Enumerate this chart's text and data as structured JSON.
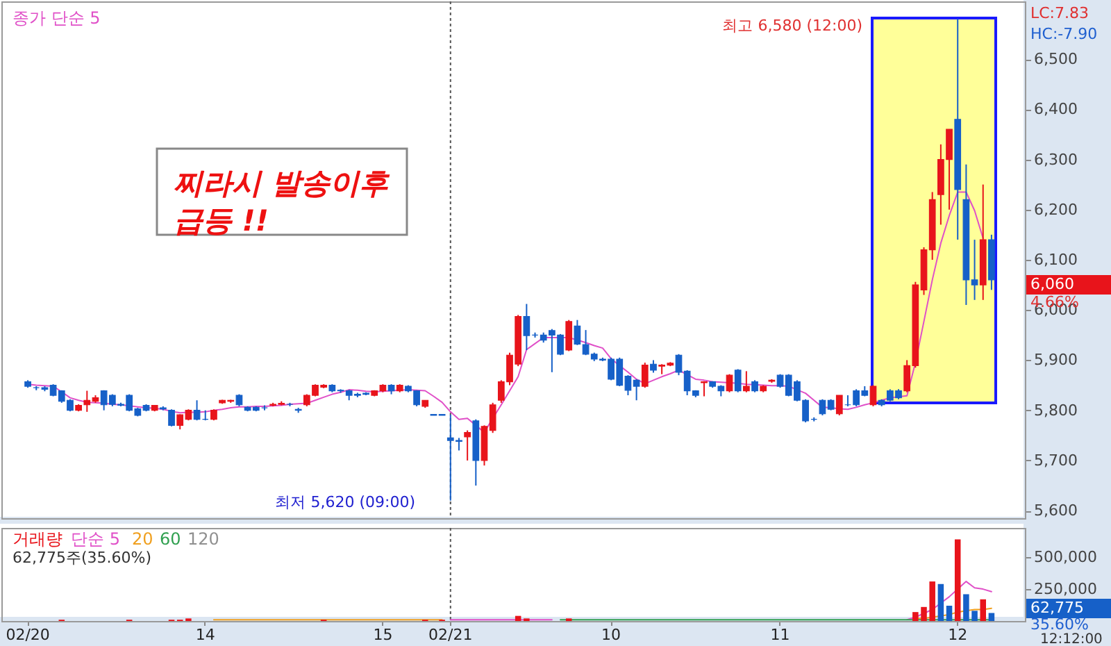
{
  "chart_data": [
    {
      "type": "candlestick",
      "ylim": [
        5585,
        6615
      ],
      "yticks": [
        {
          "value": 5600,
          "label": "5,600"
        },
        {
          "value": 5700,
          "label": "5,700"
        },
        {
          "value": 5800,
          "label": "5,800"
        },
        {
          "value": 5900,
          "label": "5,900"
        },
        {
          "value": 6000,
          "label": "6,000"
        },
        {
          "value": 6100,
          "label": "6,100"
        },
        {
          "value": 6200,
          "label": "6,200"
        },
        {
          "value": 6300,
          "label": "6,300"
        },
        {
          "value": 6400,
          "label": "6,400"
        },
        {
          "value": 6500,
          "label": "6,500"
        }
      ],
      "tick_labels": "y",
      "legend": "top left",
      "categories": [
        "02/20",
        null,
        null,
        null,
        null,
        null,
        null,
        null,
        null,
        null,
        null,
        null,
        null,
        null,
        null,
        null,
        null,
        null,
        null,
        null,
        null,
        "14",
        null,
        null,
        null,
        null,
        null,
        null,
        null,
        null,
        null,
        null,
        null,
        null,
        null,
        null,
        null,
        null,
        null,
        null,
        null,
        null,
        "15",
        null,
        null,
        null,
        null,
        null,
        null,
        null,
        "02/21",
        null,
        null,
        null,
        null,
        null,
        null,
        null,
        null,
        null,
        null,
        null,
        null,
        null,
        null,
        null,
        null,
        null,
        null,
        "10",
        null,
        null,
        null,
        null,
        null,
        null,
        null,
        null,
        null,
        null,
        null,
        null,
        null,
        null,
        null,
        null,
        null,
        null,
        null,
        "11",
        null,
        null,
        null,
        null,
        null,
        null,
        null,
        null,
        null,
        null,
        null,
        null,
        null,
        null,
        null,
        null,
        null,
        null,
        null,
        null,
        "12",
        null,
        null,
        null,
        null
      ],
      "ohlc": [
        [
          5857,
          5860,
          5845,
          5848
        ],
        [
          5845,
          5848,
          5840,
          5845
        ],
        [
          5845,
          5848,
          5838,
          5842
        ],
        [
          5850,
          5852,
          5828,
          5830
        ],
        [
          5839,
          5840,
          5815,
          5818
        ],
        [
          5820,
          5822,
          5798,
          5800
        ],
        [
          5800,
          5812,
          5798,
          5810
        ],
        [
          5811,
          5839,
          5797,
          5820
        ],
        [
          5818,
          5830,
          5815,
          5825
        ],
        [
          5839,
          5840,
          5800,
          5811
        ],
        [
          5830,
          5832,
          5808,
          5812
        ],
        [
          5812,
          5815,
          5808,
          5810
        ],
        [
          5830,
          5832,
          5798,
          5800
        ],
        [
          5803,
          5805,
          5788,
          5790
        ],
        [
          5810,
          5812,
          5798,
          5800
        ],
        [
          5800,
          5810,
          5798,
          5810
        ],
        [
          5805,
          5808,
          5800,
          5803
        ],
        [
          5800,
          5802,
          5768,
          5770
        ],
        [
          5770,
          5792,
          5762,
          5791
        ],
        [
          5782,
          5802,
          5780,
          5800
        ],
        [
          5800,
          5820,
          5780,
          5782
        ],
        [
          5782,
          5800,
          5780,
          5782
        ],
        [
          5782,
          5802,
          5780,
          5800
        ],
        [
          5815,
          5821,
          5813,
          5820
        ],
        [
          5818,
          5821,
          5815,
          5820
        ],
        [
          5830,
          5832,
          5808,
          5811
        ],
        [
          5806,
          5808,
          5798,
          5800
        ],
        [
          5806,
          5808,
          5798,
          5800
        ],
        [
          5805,
          5810,
          5800,
          5805
        ],
        [
          5810,
          5815,
          5808,
          5812
        ],
        [
          5812,
          5818,
          5810,
          5814
        ],
        [
          5812,
          5815,
          5808,
          5812
        ],
        [
          5802,
          5805,
          5795,
          5800
        ],
        [
          5811,
          5832,
          5808,
          5830
        ],
        [
          5830,
          5852,
          5828,
          5850
        ],
        [
          5846,
          5852,
          5844,
          5850
        ],
        [
          5850,
          5852,
          5836,
          5839
        ],
        [
          5840,
          5842,
          5835,
          5839
        ],
        [
          5839,
          5841,
          5820,
          5830
        ],
        [
          5832,
          5835,
          5826,
          5830
        ],
        [
          5834,
          5836,
          5830,
          5832
        ],
        [
          5830,
          5840,
          5828,
          5839
        ],
        [
          5839,
          5852,
          5836,
          5850
        ],
        [
          5850,
          5852,
          5832,
          5839
        ],
        [
          5839,
          5852,
          5836,
          5850
        ],
        [
          5848,
          5850,
          5836,
          5839
        ],
        [
          5839,
          5840,
          5808,
          5811
        ],
        [
          5808,
          5820,
          5805,
          5820
        ],
        [
          5792,
          5792,
          5790,
          5790
        ],
        [
          5792,
          5792,
          5790,
          5790
        ],
        [
          5745,
          5791,
          5620,
          5740
        ],
        [
          5740,
          5745,
          5720,
          5738
        ],
        [
          5747,
          5760,
          5700,
          5756
        ],
        [
          5779,
          5782,
          5650,
          5700
        ],
        [
          5700,
          5770,
          5690,
          5768
        ],
        [
          5760,
          5815,
          5755,
          5811
        ],
        [
          5820,
          5860,
          5815,
          5857
        ],
        [
          5857,
          5915,
          5850,
          5910
        ],
        [
          5892,
          5990,
          5888,
          5987
        ],
        [
          5987,
          6012,
          5920,
          5949
        ],
        [
          5950,
          5955,
          5945,
          5950
        ],
        [
          5950,
          5955,
          5935,
          5940
        ],
        [
          5959,
          5962,
          5876,
          5950
        ],
        [
          5950,
          5952,
          5910,
          5912
        ],
        [
          5920,
          5980,
          5918,
          5977
        ],
        [
          5968,
          5980,
          5930,
          5932
        ],
        [
          5931,
          5960,
          5910,
          5912
        ],
        [
          5912,
          5915,
          5898,
          5902
        ],
        [
          5900,
          5905,
          5898,
          5902
        ],
        [
          5902,
          5905,
          5860,
          5862
        ],
        [
          5902,
          5905,
          5848,
          5850
        ],
        [
          5868,
          5870,
          5830,
          5840
        ],
        [
          5860,
          5862,
          5820,
          5848
        ],
        [
          5848,
          5895,
          5845,
          5890
        ],
        [
          5892,
          5900,
          5875,
          5880
        ],
        [
          5888,
          5892,
          5872,
          5890
        ],
        [
          5890,
          5896,
          5888,
          5894
        ],
        [
          5910,
          5912,
          5870,
          5876
        ],
        [
          5878,
          5880,
          5830,
          5839
        ],
        [
          5839,
          5840,
          5826,
          5830
        ],
        [
          5855,
          5858,
          5828,
          5857
        ],
        [
          5857,
          5858,
          5845,
          5848
        ],
        [
          5848,
          5850,
          5828,
          5839
        ],
        [
          5839,
          5872,
          5836,
          5870
        ],
        [
          5880,
          5882,
          5836,
          5839
        ],
        [
          5839,
          5878,
          5836,
          5848
        ],
        [
          5857,
          5860,
          5836,
          5839
        ],
        [
          5839,
          5850,
          5836,
          5848
        ],
        [
          5858,
          5862,
          5855,
          5860
        ],
        [
          5870,
          5872,
          5845,
          5848
        ],
        [
          5870,
          5872,
          5828,
          5830
        ],
        [
          5857,
          5860,
          5818,
          5820
        ],
        [
          5820,
          5822,
          5776,
          5779
        ],
        [
          5782,
          5786,
          5778,
          5782
        ],
        [
          5820,
          5822,
          5790,
          5793
        ],
        [
          5820,
          5822,
          5800,
          5802
        ],
        [
          5793,
          5830,
          5790,
          5830
        ],
        [
          5811,
          5830,
          5808,
          5811
        ],
        [
          5839,
          5842,
          5808,
          5811
        ],
        [
          5839,
          5848,
          5828,
          5830
        ],
        [
          5811,
          5850,
          5808,
          5848
        ],
        [
          5820,
          5822,
          5808,
          5811
        ],
        [
          5839,
          5842,
          5818,
          5820
        ],
        [
          5839,
          5842,
          5822,
          5825
        ],
        [
          5839,
          5900,
          5836,
          5889
        ],
        [
          5889,
          6056,
          5885,
          6050
        ],
        [
          6040,
          6125,
          6030,
          6120
        ],
        [
          6120,
          6235,
          6100,
          6220
        ],
        [
          6230,
          6330,
          6170,
          6300
        ],
        [
          6300,
          6360,
          6200,
          6360
        ],
        [
          6380,
          6580,
          6140,
          6240
        ],
        [
          6220,
          6290,
          6010,
          6060
        ],
        [
          6060,
          6140,
          6020,
          6050
        ],
        [
          6050,
          6250,
          6020,
          6140
        ],
        [
          6140,
          6150,
          6040,
          6060
        ]
      ],
      "colors": [
        "#1660c8",
        "#1660c8",
        "#1660c8",
        "#1660c8",
        "#1660c8",
        "#1660c8",
        "#e8141b",
        "#e8141b",
        "#e8141b",
        "#1660c8",
        "#1660c8",
        "#1660c8",
        "#1660c8",
        "#1660c8",
        "#1660c8",
        "#e8141b",
        "#1660c8",
        "#1660c8",
        "#e8141b",
        "#e8141b",
        "#1660c8",
        "#1660c8",
        "#e8141b",
        "#e8141b",
        "#e8141b",
        "#1660c8",
        "#1660c8",
        "#1660c8",
        "#1660c8",
        "#e8141b",
        "#e8141b",
        "#1660c8",
        "#1660c8",
        "#e8141b",
        "#e8141b",
        "#e8141b",
        "#1660c8",
        "#1660c8",
        "#1660c8",
        "#1660c8",
        "#1660c8",
        "#e8141b",
        "#e8141b",
        "#1660c8",
        "#e8141b",
        "#1660c8",
        "#1660c8",
        "#e8141b",
        "#1660c8",
        "#1660c8",
        "#1660c8",
        "#1660c8",
        "#e8141b",
        "#1660c8",
        "#e8141b",
        "#e8141b",
        "#e8141b",
        "#e8141b",
        "#e8141b",
        "#1660c8",
        "#1660c8",
        "#1660c8",
        "#1660c8",
        "#1660c8",
        "#e8141b",
        "#1660c8",
        "#1660c8",
        "#1660c8",
        "#1660c8",
        "#1660c8",
        "#1660c8",
        "#1660c8",
        "#1660c8",
        "#e8141b",
        "#1660c8",
        "#e8141b",
        "#e8141b",
        "#1660c8",
        "#1660c8",
        "#1660c8",
        "#e8141b",
        "#1660c8",
        "#1660c8",
        "#e8141b",
        "#1660c8",
        "#e8141b",
        "#1660c8",
        "#e8141b",
        "#e8141b",
        "#1660c8",
        "#1660c8",
        "#1660c8",
        "#1660c8",
        "#1660c8",
        "#1660c8",
        "#1660c8",
        "#e8141b",
        "#1660c8",
        "#1660c8",
        "#1660c8",
        "#e8141b",
        "#1660c8",
        "#1660c8",
        "#1660c8",
        "#e8141b",
        "#e8141b",
        "#e8141b",
        "#e8141b",
        "#e8141b",
        "#e8141b",
        "#1660c8",
        "#1660c8",
        "#1660c8",
        "#e8141b",
        "#1660c8"
      ],
      "series": [
        {
          "name": "종가 단순 5",
          "type": "line",
          "color": "#e050c8",
          "values": [
            5852,
            5850,
            5849,
            5848,
            5837,
            5825,
            5820,
            5816,
            5815,
            5814,
            5812,
            5811,
            5809,
            5807,
            5805,
            5804,
            5802,
            5798,
            5795,
            5796,
            5796,
            5797,
            5800,
            5802,
            5805,
            5807,
            5807,
            5808,
            5808,
            5809,
            5810,
            5812,
            5813,
            5814,
            5820,
            5826,
            5832,
            5836,
            5841,
            5840,
            5838,
            5837,
            5838,
            5839,
            5840,
            5841,
            5840,
            5839,
            5828,
            5816,
            5797,
            5782,
            5784,
            5770,
            5756,
            5784,
            5811,
            5839,
            5867,
            5921,
            5933,
            5945,
            5945,
            5945,
            5945,
            5940,
            5935,
            5929,
            5924,
            5903,
            5889,
            5876,
            5862,
            5853,
            5860,
            5867,
            5873,
            5880,
            5871,
            5862,
            5860,
            5857,
            5856,
            5855,
            5854,
            5852,
            5851,
            5850,
            5849,
            5849,
            5848,
            5841,
            5834,
            5820,
            5806,
            5805,
            5803,
            5802,
            5806,
            5811,
            5815,
            5820,
            5825,
            5827,
            5829,
            5895,
            5977,
            6060,
            6133,
            6188,
            6235,
            6235,
            6198,
            6143,
            null
          ]
        }
      ],
      "ref_lines": [
        {
          "axis": "x",
          "value": "02/21",
          "line_style": "dotted",
          "color": "#555555"
        }
      ],
      "annotations": [
        "최고 6,580 (12:00)",
        "최저 5,620 (09:00)",
        "찌라시 발송이후\n급등 !!",
        "LC:7.83",
        "HC:-7.90",
        "6,060",
        "4.66%"
      ]
    },
    {
      "type": "bar",
      "ylim": [
        0,
        730000
      ],
      "yticks": [
        {
          "value": 250000,
          "label": "250,000"
        },
        {
          "value": 500000,
          "label": "500,000"
        }
      ],
      "categories": [
        "02/20",
        null,
        null,
        null,
        null,
        null,
        null,
        null,
        null,
        null,
        null,
        null,
        null,
        null,
        null,
        null,
        null,
        null,
        null,
        null,
        null,
        "14",
        null,
        null,
        null,
        null,
        null,
        null,
        null,
        null,
        null,
        null,
        null,
        null,
        null,
        null,
        null,
        null,
        null,
        null,
        null,
        null,
        "15",
        null,
        null,
        null,
        null,
        null,
        null,
        null,
        "02/21",
        null,
        null,
        null,
        null,
        null,
        null,
        null,
        null,
        null,
        null,
        null,
        null,
        null,
        null,
        null,
        null,
        null,
        null,
        "10",
        null,
        null,
        null,
        null,
        null,
        null,
        null,
        null,
        null,
        null,
        null,
        null,
        null,
        null,
        null,
        null,
        null,
        null,
        null,
        "11",
        null,
        null,
        null,
        null,
        null,
        null,
        null,
        null,
        null,
        null,
        null,
        null,
        null,
        null,
        null,
        null,
        null,
        null,
        null,
        null,
        "12",
        null,
        null,
        null,
        null
      ],
      "legend": "top left",
      "series": [
        {
          "name": "거래량",
          "type": "bar",
          "values": [
            null,
            null,
            null,
            null,
            10000,
            null,
            null,
            null,
            null,
            null,
            null,
            null,
            10000,
            null,
            null,
            null,
            null,
            10000,
            10000,
            20000,
            null,
            null,
            null,
            null,
            null,
            null,
            null,
            null,
            null,
            null,
            null,
            null,
            null,
            null,
            null,
            10000,
            null,
            null,
            null,
            null,
            null,
            null,
            null,
            null,
            null,
            null,
            null,
            10000,
            null,
            10000,
            null,
            null,
            null,
            null,
            null,
            null,
            null,
            null,
            40000,
            20000,
            null,
            null,
            null,
            null,
            20000,
            null,
            null,
            null,
            null,
            null,
            null,
            null,
            null,
            null,
            null,
            null,
            null,
            null,
            null,
            null,
            null,
            null,
            null,
            null,
            null,
            null,
            null,
            null,
            null,
            null,
            null,
            null,
            null,
            null,
            null,
            null,
            null,
            null,
            null,
            null,
            null,
            null,
            null,
            null,
            null,
            70000,
            110000,
            310000,
            290000,
            120000,
            640000,
            210000,
            80000,
            170000,
            62775
          ],
          "colors": [
            null,
            null,
            null,
            null,
            "#e8141b",
            null,
            null,
            null,
            null,
            null,
            null,
            null,
            "#e8141b",
            null,
            null,
            null,
            null,
            "#e8141b",
            "#e8141b",
            "#e8141b",
            null,
            null,
            null,
            null,
            null,
            null,
            null,
            null,
            null,
            null,
            null,
            null,
            null,
            null,
            null,
            "#e8141b",
            null,
            null,
            null,
            null,
            null,
            null,
            null,
            null,
            null,
            null,
            null,
            "#e8141b",
            null,
            "#e8141b",
            null,
            null,
            null,
            null,
            null,
            null,
            null,
            null,
            "#e8141b",
            "#e8141b",
            null,
            null,
            null,
            null,
            "#e8141b",
            null,
            null,
            null,
            null,
            null,
            null,
            null,
            null,
            null,
            null,
            null,
            null,
            null,
            null,
            null,
            null,
            null,
            null,
            null,
            null,
            null,
            null,
            null,
            null,
            null,
            null,
            null,
            null,
            null,
            null,
            null,
            null,
            null,
            null,
            null,
            null,
            null,
            null,
            null,
            null,
            "#e8141b",
            "#e8141b",
            "#e8141b",
            "#1660c8",
            "#1660c8",
            "#e8141b",
            "#1660c8",
            "#1660c8",
            "#e8141b",
            "#1660c8"
          ]
        },
        {
          "name": "단순 5",
          "type": "line",
          "color": "#e050c8",
          "values": [
            null,
            null,
            null,
            null,
            null,
            null,
            null,
            null,
            null,
            null,
            null,
            null,
            null,
            null,
            null,
            null,
            null,
            null,
            null,
            null,
            null,
            null,
            null,
            null,
            null,
            null,
            null,
            null,
            null,
            null,
            null,
            null,
            null,
            null,
            null,
            null,
            null,
            null,
            null,
            null,
            null,
            null,
            null,
            null,
            null,
            null,
            null,
            null,
            null,
            null,
            10000,
            10000,
            10000,
            10000,
            10000,
            10000,
            10000,
            10000,
            10000,
            10000,
            10000,
            10000,
            10000,
            null,
            null,
            null,
            null,
            null,
            null,
            null,
            null,
            null,
            null,
            null,
            null,
            null,
            null,
            null,
            null,
            null,
            null,
            null,
            null,
            null,
            null,
            null,
            null,
            null,
            null,
            null,
            null,
            null,
            null,
            null,
            null,
            null,
            null,
            null,
            null,
            null,
            null,
            null,
            null,
            null,
            10000,
            30000,
            60000,
            90000,
            140000,
            190000,
            250000,
            310000,
            260000,
            250000,
            230000
          ]
        },
        {
          "name": "20",
          "type": "line",
          "color": "#f0a020",
          "values": [
            null,
            null,
            null,
            null,
            null,
            null,
            null,
            null,
            null,
            null,
            null,
            null,
            null,
            null,
            null,
            null,
            null,
            null,
            null,
            null,
            null,
            null,
            10000,
            10000,
            10000,
            10000,
            10000,
            10000,
            10000,
            10000,
            10000,
            10000,
            10000,
            10000,
            10000,
            10000,
            10000,
            10000,
            10000,
            10000,
            10000,
            10000,
            10000,
            10000,
            10000,
            10000,
            10000,
            10000,
            10000,
            10000,
            null,
            null,
            null,
            null,
            null,
            null,
            null,
            null,
            null,
            null,
            null,
            null,
            null,
            null,
            null,
            null,
            null,
            null,
            null,
            null,
            null,
            null,
            null,
            null,
            null,
            null,
            null,
            null,
            null,
            null,
            null,
            null,
            null,
            null,
            null,
            null,
            null,
            null,
            null,
            null,
            null,
            null,
            null,
            null,
            null,
            null,
            null,
            null,
            null,
            null,
            null,
            null,
            null,
            null,
            null,
            20000,
            20000,
            30000,
            40000,
            50000,
            70000,
            80000,
            90000,
            90000,
            100000
          ]
        },
        {
          "name": "60",
          "type": "line",
          "color": "#30a050",
          "values": [
            null,
            null,
            null,
            null,
            null,
            null,
            null,
            null,
            null,
            null,
            null,
            null,
            null,
            null,
            null,
            null,
            null,
            null,
            null,
            null,
            null,
            null,
            null,
            null,
            null,
            null,
            null,
            null,
            null,
            null,
            null,
            null,
            null,
            null,
            null,
            null,
            null,
            null,
            null,
            null,
            null,
            null,
            null,
            null,
            null,
            null,
            null,
            null,
            null,
            null,
            null,
            null,
            null,
            null,
            null,
            null,
            null,
            null,
            null,
            null,
            null,
            null,
            null,
            10000,
            10000,
            10000,
            10000,
            10000,
            10000,
            10000,
            10000,
            10000,
            10000,
            10000,
            10000,
            10000,
            10000,
            10000,
            10000,
            10000,
            10000,
            10000,
            10000,
            10000,
            10000,
            10000,
            10000,
            10000,
            10000,
            10000,
            10000,
            10000,
            10000,
            10000,
            10000,
            10000,
            10000,
            10000,
            10000,
            10000,
            10000,
            10000,
            10000,
            10000,
            10000,
            10000,
            10000,
            10000,
            10000,
            10000,
            10000,
            10000,
            10000,
            10000,
            10000
          ]
        }
      ],
      "ref_lines": [
        {
          "axis": "x",
          "value": "02/21",
          "line_style": "dotted",
          "color": "#555555"
        }
      ],
      "annotations": [
        "62,775주(35.60%)",
        "62,775",
        "35.60%",
        "12:12:00",
        "120"
      ]
    }
  ]
}
